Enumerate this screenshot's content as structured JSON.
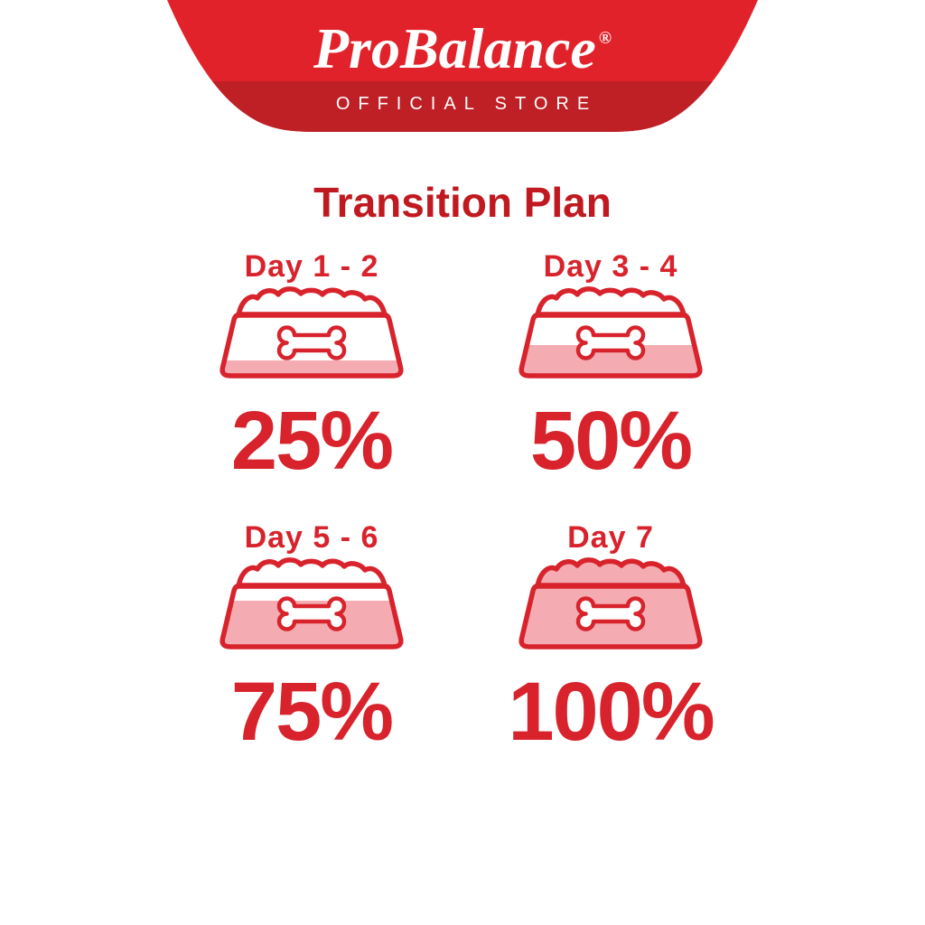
{
  "brand": {
    "logo_text": "ProBalance",
    "registered_mark": "®",
    "tagline": "OFFICIAL STORE"
  },
  "heading": {
    "title": "Transition Plan"
  },
  "steps": [
    {
      "label": "Day 1 - 2",
      "percent": "25%",
      "fill_level": 25
    },
    {
      "label": "Day 3 - 4",
      "percent": "50%",
      "fill_level": 50
    },
    {
      "label": "Day 5 - 6",
      "percent": "75%",
      "fill_level": 75
    },
    {
      "label": "Day 7",
      "percent": "100%",
      "fill_level": 100
    }
  ],
  "icons": {
    "bowl": "dog-bowl-icon",
    "bone": "bone-icon",
    "food_mound": "kibble-mound-icon"
  },
  "colors": {
    "banner_red": "#e2222a",
    "banner_band_red": "#be2026",
    "heading_red": "#c0191f",
    "accent_red": "#d8232c",
    "fill_pink": "#f4acb2",
    "background": "#ffffff",
    "logo_white": "#ffffff"
  }
}
